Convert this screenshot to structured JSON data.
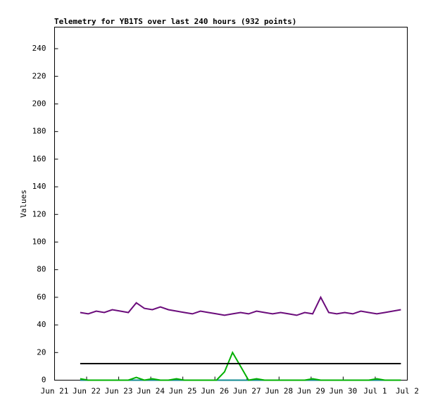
{
  "chart_data": {
    "type": "line",
    "title": "Telemetry for YB1TS over last 240 hours (932 points)",
    "ylabel": "Values",
    "x": [
      0.8,
      1.05,
      1.3,
      1.55,
      1.8,
      2.05,
      2.3,
      2.55,
      2.8,
      3.05,
      3.3,
      3.55,
      3.8,
      4.05,
      4.3,
      4.55,
      4.8,
      5.05,
      5.3,
      5.55,
      5.8,
      6.05,
      6.3,
      6.55,
      6.8,
      7.05,
      7.3,
      7.55,
      7.8,
      8.05,
      8.3,
      8.55,
      8.8,
      9.05,
      9.3,
      9.55,
      9.8,
      10.05,
      10.3,
      10.55,
      10.8
    ],
    "series": [
      {
        "color": "#6b0c7b",
        "values": [
          49,
          48,
          50,
          49,
          51,
          50,
          49,
          56,
          52,
          51,
          53,
          51,
          50,
          49,
          48,
          50,
          49,
          48,
          47,
          48,
          49,
          48,
          50,
          49,
          48,
          49,
          48,
          47,
          49,
          48,
          60,
          49,
          48,
          49,
          48,
          50,
          49,
          48,
          49,
          50,
          51
        ]
      },
      {
        "color": "#000000",
        "values": [
          12,
          12,
          12,
          12,
          12,
          12,
          12,
          12,
          12,
          12,
          12,
          12,
          12,
          12,
          12,
          12,
          12,
          12,
          12,
          12,
          12,
          12,
          12,
          12,
          12,
          12,
          12,
          12,
          12,
          12,
          12,
          12,
          12,
          12,
          12,
          12,
          12,
          12,
          12,
          12,
          12
        ]
      },
      {
        "color": "#00b000",
        "values": [
          1,
          0,
          0,
          0,
          0,
          0,
          0,
          2,
          0,
          1,
          0,
          0,
          1,
          0,
          0,
          0,
          0,
          0,
          6,
          20,
          10,
          0,
          1,
          0,
          0,
          0,
          0,
          0,
          0,
          1,
          0,
          0,
          0,
          0,
          0,
          0,
          0,
          1,
          0,
          0,
          0
        ]
      },
      {
        "color": "#108890",
        "values": [
          0,
          0,
          0,
          0,
          0,
          0,
          0,
          0,
          0,
          0,
          0,
          0,
          0,
          0,
          0,
          0,
          0,
          0,
          0,
          0,
          0,
          0,
          0,
          0,
          0,
          0,
          0,
          0,
          0,
          0,
          0,
          0,
          0,
          0,
          0,
          0,
          0,
          0,
          0,
          0,
          0
        ]
      }
    ],
    "xlim": [
      0,
      11
    ],
    "xticks": [
      {
        "value": 0,
        "label": "Jun 21"
      },
      {
        "value": 1,
        "label": "Jun 22"
      },
      {
        "value": 2,
        "label": "Jun 23"
      },
      {
        "value": 3,
        "label": "Jun 24"
      },
      {
        "value": 4,
        "label": "Jun 25"
      },
      {
        "value": 5,
        "label": "Jun 26"
      },
      {
        "value": 6,
        "label": "Jun 27"
      },
      {
        "value": 7,
        "label": "Jun 28"
      },
      {
        "value": 8,
        "label": "Jun 29"
      },
      {
        "value": 9,
        "label": "Jun 30"
      },
      {
        "value": 10,
        "label": "Jul 1"
      },
      {
        "value": 11,
        "label": "Jul 2"
      }
    ],
    "ylim": [
      0,
      255.6
    ],
    "yticks": [
      0,
      20,
      40,
      60,
      80,
      100,
      120,
      140,
      160,
      180,
      200,
      220,
      240
    ]
  }
}
